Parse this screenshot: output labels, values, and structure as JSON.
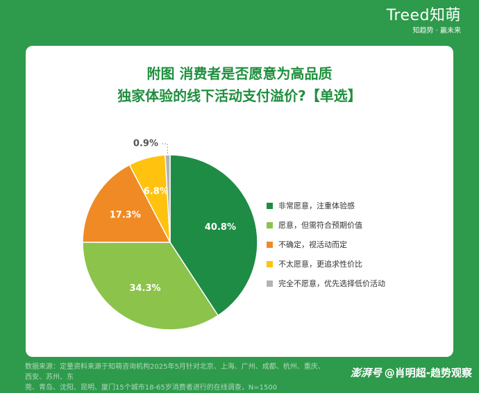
{
  "brand": {
    "logo": "Treed知萌",
    "tagline": "知趋势 · 赢未来"
  },
  "chart_data": {
    "type": "pie",
    "title_line1": "附图 消费者是否愿意为高品质",
    "title_line2": "独家体验的线下活动支付溢价?【单选】",
    "slices": [
      {
        "label": "非常愿意，注重体验感",
        "value": 40.8,
        "display": "40.8%",
        "color": "#1e8c45"
      },
      {
        "label": "愿意，但需符合预期价值",
        "value": 34.3,
        "display": "34.3%",
        "color": "#8cc34b"
      },
      {
        "label": "不确定，视活动而定",
        "value": 17.3,
        "display": "17.3%",
        "color": "#f08a24"
      },
      {
        "label": "不太愿意，更追求性价比",
        "value": 6.8,
        "display": "6.8%",
        "color": "#ffc20e"
      },
      {
        "label": "完全不愿意，优先选择低价活动",
        "value": 0.9,
        "display": "0.9%",
        "color": "#b3b3b3"
      }
    ],
    "legend_position": "right"
  },
  "footer": {
    "source_line1": "数据来源：定量资料来源于知萌咨询机构2025年5月针对北京、上海、广州、成都、杭州、重庆、西安、苏州、东",
    "source_line2": "莞、青岛、沈阳、昆明、厦门15个城市18-65岁消费者进行的在线调查，N=1500"
  },
  "watermark": {
    "brand": "澎湃号",
    "author": "@肖明超-趋势观察"
  }
}
